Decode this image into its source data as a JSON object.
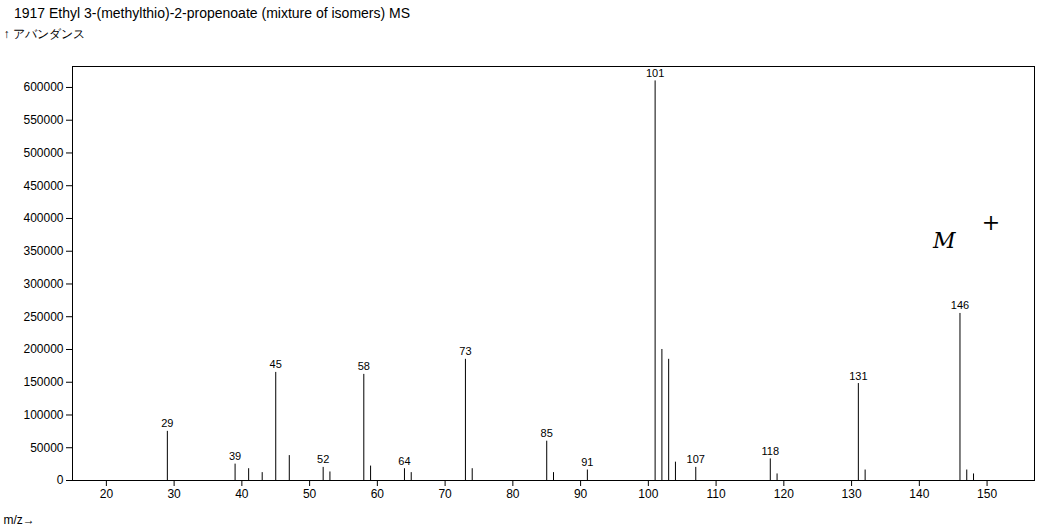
{
  "chart_data": {
    "type": "stem",
    "title": "1917  Ethyl 3-(methylthio)-2-propenoate (mixture of isomers)  MS",
    "x_label": "m/z→",
    "y_label": "アバンダンス",
    "x": [
      29,
      39,
      41,
      43,
      45,
      47,
      52,
      53,
      58,
      59,
      64,
      65,
      73,
      74,
      85,
      86,
      91,
      101,
      102,
      103,
      104,
      107,
      118,
      119,
      131,
      132,
      146,
      147,
      148
    ],
    "values": [
      75000,
      25000,
      18000,
      12000,
      165000,
      38000,
      20000,
      13000,
      162000,
      22000,
      18000,
      12000,
      185000,
      18000,
      60000,
      12000,
      16000,
      610000,
      200000,
      185000,
      28000,
      20000,
      33000,
      10000,
      148000,
      16000,
      255000,
      16000,
      10000
    ],
    "labels": [
      "29",
      "39",
      null,
      null,
      "45",
      null,
      "52",
      null,
      "58",
      null,
      "64",
      null,
      "73",
      null,
      "85",
      null,
      "91",
      "101",
      null,
      null,
      null,
      "107",
      "118",
      null,
      "131",
      null,
      "146",
      null,
      null
    ],
    "color": "#000000",
    "xlim": [
      15,
      157
    ],
    "ylim": [
      0,
      632000
    ],
    "xticks": [
      20,
      30,
      40,
      50,
      60,
      70,
      80,
      90,
      100,
      110,
      120,
      130,
      140,
      150
    ],
    "yticks": [
      0,
      50000,
      100000,
      150000,
      200000,
      250000,
      300000,
      350000,
      400000,
      450000,
      500000,
      550000,
      600000
    ],
    "annotations": [
      {
        "text": "M",
        "x": 142,
        "y": 355000
      },
      {
        "text": "+",
        "x": 149.2,
        "y": 383000
      }
    ],
    "grid": false
  }
}
